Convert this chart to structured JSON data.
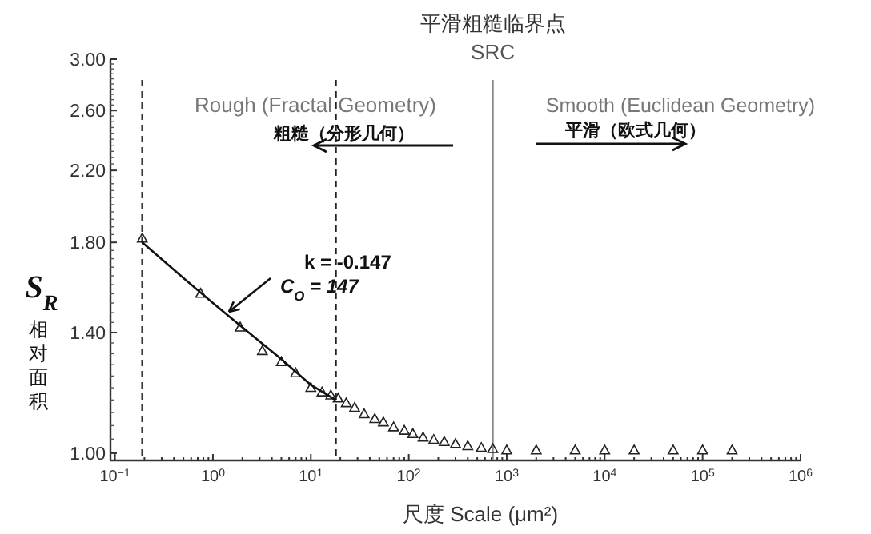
{
  "chart_data": {
    "type": "scatter",
    "title": "平滑粗糙临界点",
    "xlabel": "尺度 Scale (μm²)",
    "ylabel": "S$_{R}$",
    "annotations": [
      "相对面积",
      "Rough (Fractal Geometry)",
      "粗糙（分形几何）",
      "Smooth (Euclidean Geometry)",
      "平滑（欧式几何）",
      "k = -0.147",
      {
        "text": "C$_{O}$ = 147",
        "x": 1.3,
        "y": 1.49
      }
    ],
    "log": "xy",
    "grid": false,
    "xlim": [
      0.09,
      1000000
    ],
    "ylim": [
      0.98,
      3.0
    ],
    "xticks": [
      {
        "value": 0.1,
        "label": "10$^{−1}$"
      },
      {
        "value": 1,
        "label": "10$^{0}$"
      },
      {
        "value": 10,
        "label": "10$^{1}$"
      },
      {
        "value": 100,
        "label": "10$^{2}$"
      },
      {
        "value": 1000,
        "label": "10$^{3}$"
      },
      {
        "value": 10000,
        "label": "10$^{4}$"
      },
      {
        "value": 100000,
        "label": "10$^{5}$"
      },
      {
        "value": 1000000,
        "label": "10$^{6}$"
      }
    ],
    "yticks": [
      {
        "value": 1,
        "label": "1.00"
      },
      {
        "value": 1.4,
        "label": "1.40"
      },
      {
        "value": 1.8,
        "label": "1.80"
      },
      {
        "value": 2.2,
        "label": "2.20"
      },
      {
        "value": 2.6,
        "label": "2.60"
      },
      {
        "value": 3,
        "label": "3.00"
      }
    ],
    "series": [
      {
        "marker": "triangle",
        "color": "#222222",
        "x": [
          0.19,
          0.75,
          1.9,
          3.2,
          5,
          7,
          10,
          13,
          16,
          19,
          23,
          28,
          35,
          45,
          55,
          70,
          90,
          110,
          140,
          180,
          230,
          300,
          400,
          550,
          720,
          1000,
          2000,
          5000,
          10000,
          20000,
          50000,
          100000,
          200000
        ],
        "values": [
          1.82,
          1.56,
          1.42,
          1.33,
          1.29,
          1.25,
          1.2,
          1.185,
          1.175,
          1.165,
          1.15,
          1.135,
          1.115,
          1.1,
          1.09,
          1.075,
          1.065,
          1.055,
          1.045,
          1.038,
          1.032,
          1.026,
          1.02,
          1.015,
          1.012,
          1.008,
          1.008,
          1.008,
          1.008,
          1.008,
          1.008,
          1.008,
          1.008
        ]
      },
      {
        "type": "line",
        "color": "#111111",
        "x": [
          0.19,
          0.5,
          1,
          2,
          5,
          10,
          18
        ],
        "values": [
          1.8,
          1.63,
          1.52,
          1.42,
          1.3,
          1.21,
          1.16
        ]
      }
    ],
    "ref_lines": [
      {
        "axis": "x",
        "value": 0.19,
        "line_style": "dashed",
        "color": "#222222"
      },
      {
        "axis": "x",
        "value": 18,
        "line_style": "dashed",
        "color": "#222222"
      },
      {
        "axis": "x",
        "value": 720,
        "label": "SRC",
        "line_style": "solid",
        "color": "#888888"
      }
    ]
  }
}
